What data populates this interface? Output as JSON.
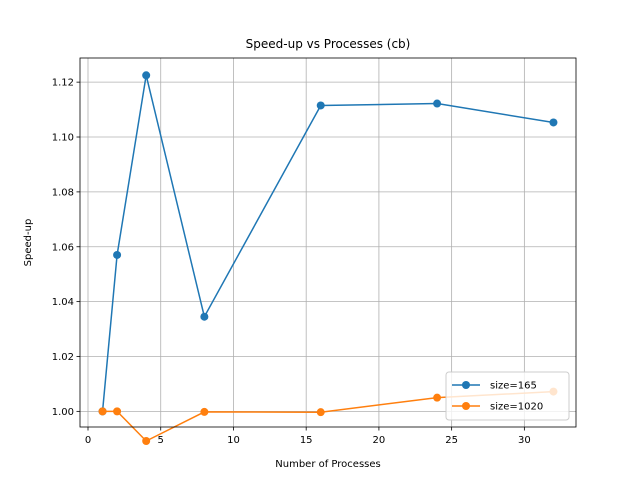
{
  "chart_data": {
    "type": "line",
    "title": "Speed-up vs Processes (cb)",
    "xlabel": "Number of Processes",
    "ylabel": "Speed-up",
    "x": [
      1,
      2,
      4,
      8,
      16,
      24,
      32
    ],
    "xlim": [
      -0.55,
      33.55
    ],
    "ylim": [
      0.9943,
      1.1288
    ],
    "xticks": [
      0,
      5,
      10,
      15,
      20,
      25,
      30
    ],
    "xtick_labels": [
      "0",
      "5",
      "10",
      "15",
      "20",
      "25",
      "30"
    ],
    "yticks": [
      1.0,
      1.02,
      1.04,
      1.06,
      1.08,
      1.1,
      1.12
    ],
    "ytick_labels": [
      "1.00",
      "1.02",
      "1.04",
      "1.06",
      "1.08",
      "1.10",
      "1.12"
    ],
    "grid": true,
    "legend_position": "lower-right",
    "series": [
      {
        "name": "size=165",
        "color": "#1f77b4",
        "values": [
          1.0,
          1.057,
          1.1225,
          1.0345,
          1.1115,
          1.1122,
          1.1053
        ]
      },
      {
        "name": "size=1020",
        "color": "#ff7f0e",
        "values": [
          1.0,
          1.0,
          0.9892,
          0.9998,
          0.9997,
          1.005,
          1.0072
        ]
      }
    ]
  }
}
